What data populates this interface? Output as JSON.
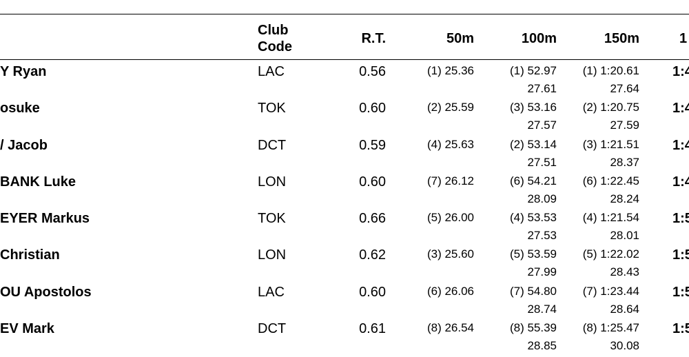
{
  "headers": {
    "club_line1": "Club",
    "club_line2": "Code",
    "rt": "R.T.",
    "m50": "50m",
    "m100": "100m",
    "m150": "150m",
    "next": "1"
  },
  "rows": [
    {
      "name": "Y Ryan",
      "club": "LAC",
      "rt": "0.56",
      "s50": "(1) 25.36",
      "s100": "(1) 52.97",
      "d100": "27.61",
      "s150": "(1) 1:20.61",
      "d150": "27.64",
      "final": "1:4"
    },
    {
      "name": "osuke",
      "club": "TOK",
      "rt": "0.60",
      "s50": "(2) 25.59",
      "s100": "(3) 53.16",
      "d100": "27.57",
      "s150": "(2) 1:20.75",
      "d150": "27.59",
      "final": "1:4"
    },
    {
      "name": "/ Jacob",
      "club": "DCT",
      "rt": "0.59",
      "s50": "(4) 25.63",
      "s100": "(2) 53.14",
      "d100": "27.51",
      "s150": "(3) 1:21.51",
      "d150": "28.37",
      "final": "1:4"
    },
    {
      "name": "BANK Luke",
      "club": "LON",
      "rt": "0.60",
      "s50": "(7) 26.12",
      "s100": "(6) 54.21",
      "d100": "28.09",
      "s150": "(6) 1:22.45",
      "d150": "28.24",
      "final": "1:4"
    },
    {
      "name": "EYER Markus",
      "club": "TOK",
      "rt": "0.66",
      "s50": "(5) 26.00",
      "s100": "(4) 53.53",
      "d100": "27.53",
      "s150": "(4) 1:21.54",
      "d150": "28.01",
      "final": "1:5"
    },
    {
      "name": " Christian",
      "club": "LON",
      "rt": "0.62",
      "s50": "(3) 25.60",
      "s100": "(5) 53.59",
      "d100": "27.99",
      "s150": "(5) 1:22.02",
      "d150": "28.43",
      "final": "1:5"
    },
    {
      "name": "OU Apostolos",
      "club": "LAC",
      "rt": "0.60",
      "s50": "(6) 26.06",
      "s100": "(7) 54.80",
      "d100": "28.74",
      "s150": "(7) 1:23.44",
      "d150": "28.64",
      "final": "1:5"
    },
    {
      "name": "EV Mark",
      "club": "DCT",
      "rt": "0.61",
      "s50": "(8) 26.54",
      "s100": "(8) 55.39",
      "d100": "28.85",
      "s150": "(8) 1:25.47",
      "d150": "30.08",
      "final": "1:5"
    }
  ]
}
